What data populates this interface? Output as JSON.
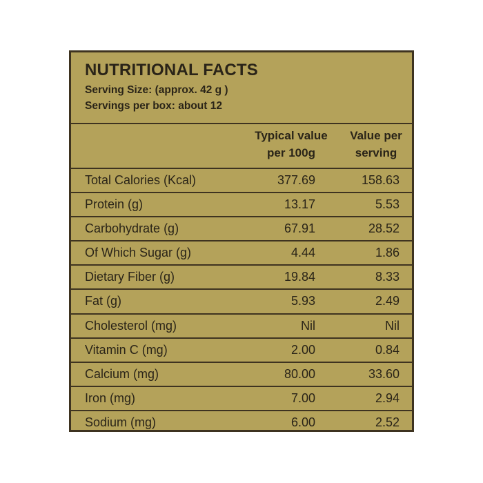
{
  "title": "NUTRITIONAL FACTS",
  "serving_size": "Serving Size: (approx. 42 g )",
  "servings_per_box": "Servings per box: about 12",
  "columns": {
    "typical_line1": "Typical value",
    "typical_line2": "per 100g",
    "serving_line1": "Value per",
    "serving_line2": "serving"
  },
  "rows": [
    {
      "label": "Total Calories (Kcal)",
      "per100g": "377.69",
      "perServing": "158.63"
    },
    {
      "label": "Protein (g)",
      "per100g": "13.17",
      "perServing": "5.53"
    },
    {
      "label": "Carbohydrate (g)",
      "per100g": "67.91",
      "perServing": "28.52"
    },
    {
      "label": "Of Which Sugar (g)",
      "per100g": "4.44",
      "perServing": "1.86"
    },
    {
      "label": "Dietary Fiber (g)",
      "per100g": "19.84",
      "perServing": "8.33"
    },
    {
      "label": "Fat (g)",
      "per100g": "5.93",
      "perServing": "2.49"
    },
    {
      "label": "Cholesterol (mg)",
      "per100g": "Nil",
      "perServing": "Nil"
    },
    {
      "label": "Vitamin C (mg)",
      "per100g": "2.00",
      "perServing": "0.84"
    },
    {
      "label": "Calcium (mg)",
      "per100g": "80.00",
      "perServing": "33.60"
    },
    {
      "label": "Iron (mg)",
      "per100g": "7.00",
      "perServing": "2.94"
    },
    {
      "label": "Sodium (mg)",
      "per100g": "6.00",
      "perServing": "2.52"
    }
  ],
  "colors": {
    "panel_background": "#b4a25a",
    "border": "#3e3320",
    "text": "#2a2418"
  }
}
